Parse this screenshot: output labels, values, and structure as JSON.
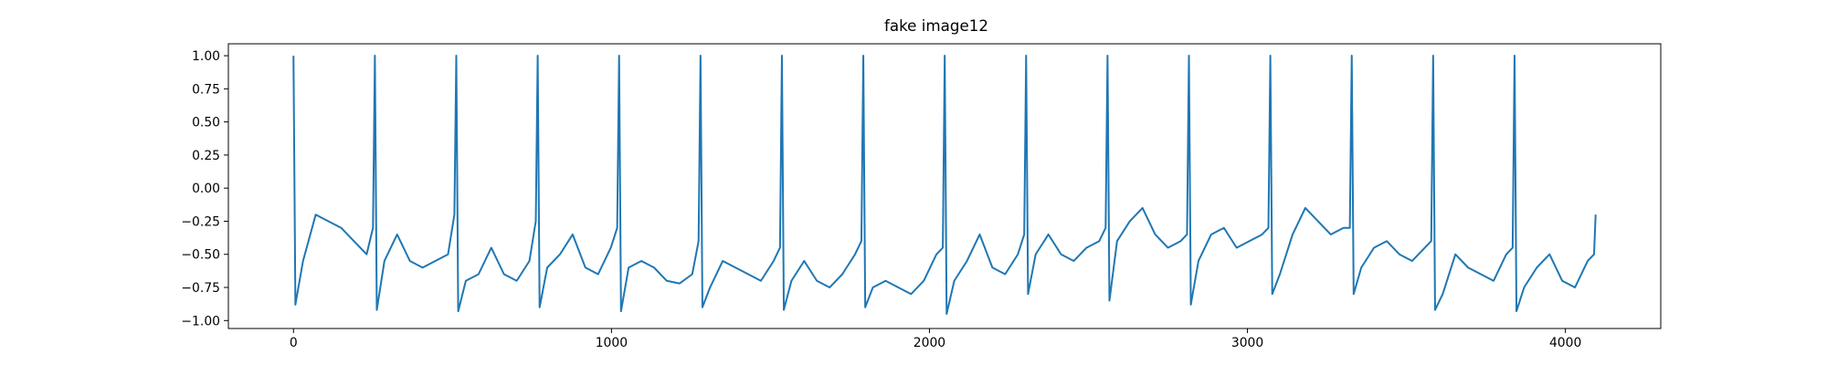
{
  "chart_data": {
    "type": "line",
    "title": "fake image12",
    "xlim": [
      -204.75,
      4299.75
    ],
    "xticks": [
      0,
      1000,
      2000,
      3000,
      4000
    ],
    "ylim": [
      -1.06,
      1.09
    ],
    "yticks": [
      {
        "value": -1,
        "label": "−1.00"
      },
      {
        "value": -0.75,
        "label": "−0.75"
      },
      {
        "value": -0.5,
        "label": "−0.50"
      },
      {
        "value": -0.25,
        "label": "−0.25"
      },
      {
        "value": 0,
        "label": "0.00"
      },
      {
        "value": 0.25,
        "label": "0.25"
      },
      {
        "value": 0.5,
        "label": "0.50"
      },
      {
        "value": 0.75,
        "label": "0.75"
      },
      {
        "value": 1,
        "label": "1.00"
      }
    ],
    "series": [
      {
        "color": "#1f77b4",
        "x": [
          0,
          6,
          30,
          70,
          110,
          150,
          190,
          230,
          250,
          256,
          262,
          286,
          326,
          366,
          406,
          446,
          486,
          506,
          512,
          518,
          542,
          582,
          622,
          662,
          702,
          742,
          762,
          768,
          774,
          798,
          838,
          878,
          918,
          958,
          998,
          1018,
          1024,
          1030,
          1054,
          1094,
          1134,
          1174,
          1214,
          1254,
          1274,
          1280,
          1286,
          1310,
          1350,
          1390,
          1430,
          1470,
          1510,
          1530,
          1536,
          1542,
          1566,
          1606,
          1646,
          1686,
          1726,
          1766,
          1786,
          1792,
          1798,
          1822,
          1862,
          1902,
          1942,
          1982,
          2022,
          2042,
          2048,
          2054,
          2078,
          2118,
          2158,
          2198,
          2238,
          2278,
          2298,
          2304,
          2310,
          2334,
          2374,
          2414,
          2454,
          2494,
          2534,
          2554,
          2560,
          2566,
          2590,
          2630,
          2670,
          2710,
          2750,
          2790,
          2810,
          2816,
          2822,
          2846,
          2886,
          2926,
          2966,
          3006,
          3046,
          3066,
          3072,
          3078,
          3102,
          3142,
          3182,
          3222,
          3262,
          3302,
          3322,
          3328,
          3334,
          3358,
          3398,
          3438,
          3478,
          3518,
          3558,
          3578,
          3584,
          3590,
          3614,
          3654,
          3694,
          3734,
          3774,
          3814,
          3834,
          3840,
          3846,
          3870,
          3910,
          3950,
          3990,
          4030,
          4070,
          4090,
          4095
        ],
        "values": [
          1,
          -0.88,
          -0.55,
          -0.2,
          -0.25,
          -0.3,
          -0.4,
          -0.5,
          -0.3,
          1,
          -0.92,
          -0.55,
          -0.35,
          -0.55,
          -0.6,
          -0.55,
          -0.5,
          -0.2,
          1,
          -0.93,
          -0.7,
          -0.65,
          -0.45,
          -0.65,
          -0.7,
          -0.55,
          -0.25,
          1,
          -0.9,
          -0.6,
          -0.5,
          -0.35,
          -0.6,
          -0.65,
          -0.45,
          -0.3,
          1,
          -0.93,
          -0.6,
          -0.55,
          -0.6,
          -0.7,
          -0.72,
          -0.65,
          -0.4,
          1,
          -0.9,
          -0.75,
          -0.55,
          -0.6,
          -0.65,
          -0.7,
          -0.55,
          -0.45,
          1,
          -0.92,
          -0.7,
          -0.55,
          -0.7,
          -0.75,
          -0.65,
          -0.5,
          -0.4,
          1,
          -0.9,
          -0.75,
          -0.7,
          -0.75,
          -0.8,
          -0.7,
          -0.5,
          -0.45,
          1,
          -0.95,
          -0.7,
          -0.55,
          -0.35,
          -0.6,
          -0.65,
          -0.5,
          -0.35,
          1,
          -0.8,
          -0.5,
          -0.35,
          -0.5,
          -0.55,
          -0.45,
          -0.4,
          -0.3,
          1,
          -0.85,
          -0.4,
          -0.25,
          -0.15,
          -0.35,
          -0.45,
          -0.4,
          -0.35,
          1,
          -0.88,
          -0.55,
          -0.35,
          -0.3,
          -0.45,
          -0.4,
          -0.35,
          -0.3,
          1,
          -0.8,
          -0.65,
          -0.35,
          -0.15,
          -0.25,
          -0.35,
          -0.3,
          -0.3,
          1,
          -0.8,
          -0.6,
          -0.45,
          -0.4,
          -0.5,
          -0.55,
          -0.45,
          -0.4,
          1,
          -0.92,
          -0.8,
          -0.5,
          -0.6,
          -0.65,
          -0.7,
          -0.5,
          -0.45,
          1,
          -0.93,
          -0.75,
          -0.6,
          -0.5,
          -0.7,
          -0.75,
          -0.55,
          -0.5,
          -0.2
        ]
      }
    ]
  }
}
